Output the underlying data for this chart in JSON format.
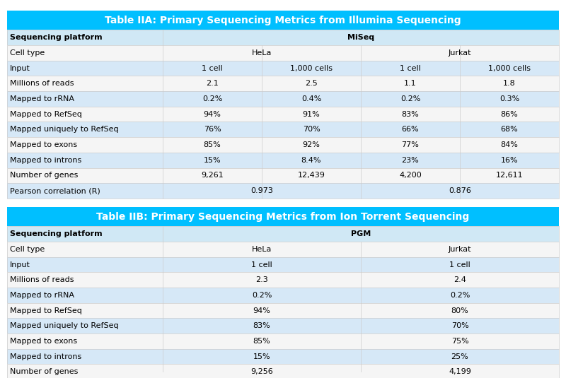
{
  "tableA_title": "Table IIA: Primary Sequencing Metrics from Illumina Sequencing",
  "tableB_title": "Table IIB: Primary Sequencing Metrics from Ion Torrent Sequencing",
  "header_bg": "#00BFFF",
  "header_text_color": "#FFFFFF",
  "subheader_bg": "#DDEEFF",
  "row_light": "#F5F5F5",
  "row_dark": "#DDEEFF",
  "border_color": "#AAAAAA",
  "tableA": {
    "platform_row": [
      "Sequencing platform",
      "",
      "MiSeq",
      "",
      ""
    ],
    "cell_type_row": [
      "Cell type",
      "HeLa",
      "",
      "Jurkat",
      ""
    ],
    "input_row": [
      "Input",
      "1 cell",
      "1,000 cells",
      "1 cell",
      "1,000 cells"
    ],
    "rows": [
      [
        "Millions of reads",
        "2.1",
        "2.5",
        "1.1",
        "1.8"
      ],
      [
        "Mapped to rRNA",
        "0.2%",
        "0.4%",
        "0.2%",
        "0.3%"
      ],
      [
        "Mapped to RefSeq",
        "94%",
        "91%",
        "83%",
        "86%"
      ],
      [
        "Mapped uniquely to RefSeq",
        "76%",
        "70%",
        "66%",
        "68%"
      ],
      [
        "Mapped to exons",
        "85%",
        "92%",
        "77%",
        "84%"
      ],
      [
        "Mapped to introns",
        "15%",
        "8.4%",
        "23%",
        "16%"
      ],
      [
        "Number of genes",
        "9,261",
        "12,439",
        "4,200",
        "12,611"
      ],
      [
        "Pearson correlation (R)",
        "",
        "0.973",
        "",
        "0.876"
      ]
    ]
  },
  "tableB": {
    "platform_row": [
      "Sequencing platform",
      "",
      "PGM",
      ""
    ],
    "cell_type_row": [
      "Cell type",
      "HeLa",
      "",
      "Jurkat"
    ],
    "input_row": [
      "Input",
      "1 cell",
      "",
      "1 cell"
    ],
    "rows": [
      [
        "Millions of reads",
        "2.3",
        "",
        "2.4"
      ],
      [
        "Mapped to rRNA",
        "0.2%",
        "",
        "0.2%"
      ],
      [
        "Mapped to RefSeq",
        "94%",
        "",
        "80%"
      ],
      [
        "Mapped uniquely to RefSeq",
        "83%",
        "",
        "70%"
      ],
      [
        "Mapped to exons",
        "85%",
        "",
        "75%"
      ],
      [
        "Mapped to introns",
        "15%",
        "",
        "25%"
      ],
      [
        "Number of genes",
        "9,256",
        "",
        "4,199"
      ]
    ]
  }
}
